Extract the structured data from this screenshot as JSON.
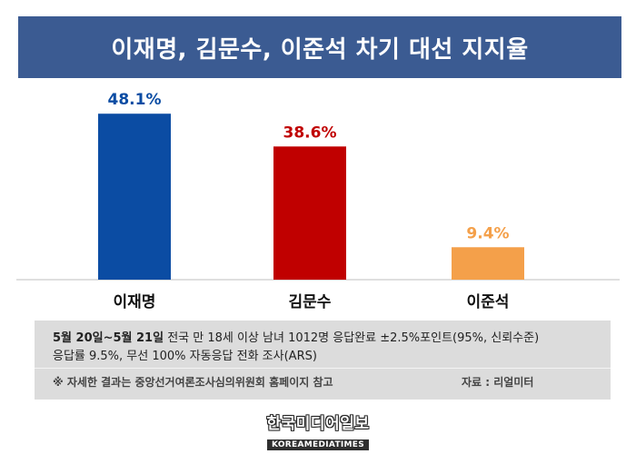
{
  "header": {
    "title": "이재명, 김문수, 이준석 차기 대선 지지율"
  },
  "chart_data": {
    "type": "bar",
    "title": "이재명, 김문수, 이준석 차기 대선 지지율",
    "categories": [
      "이재명",
      "김문수",
      "이준석"
    ],
    "values": [
      48.1,
      38.6,
      9.4
    ],
    "value_labels": [
      "48.1%",
      "38.6%",
      "9.4%"
    ],
    "colors": [
      "#0b4ca3",
      "#c00000",
      "#f4a04a"
    ],
    "ylim": [
      0,
      50
    ],
    "grid": false,
    "legend": "none"
  },
  "info": {
    "date": "5월 20일~5월 21일",
    "line1_rest": " 전국 만 18세 이상 남녀 1012명 응답완료 ±2.5%포인트(95%, 신뢰수준)",
    "line2": "응답률 9.5%, 무선 100% 자동응답 전화 조사(ARS)",
    "note": "※ 자세한 결과는 중앙선거여론조사심의위원회 홈페이지 참고",
    "source": "자료 : 리얼미터"
  },
  "logo": {
    "korean": "한국미디어일보",
    "english": "KOREAMEDIATIMES"
  }
}
